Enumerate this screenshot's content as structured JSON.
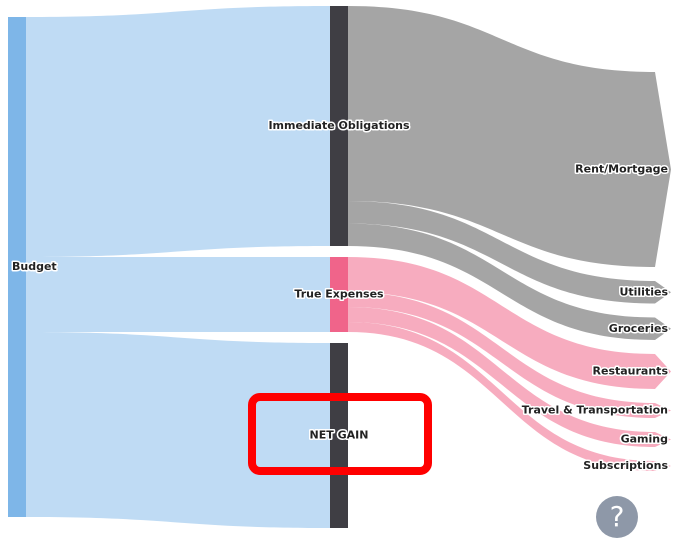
{
  "chart_data": {
    "type": "sankey",
    "nodes": [
      {
        "name": "Budget",
        "color": "#7eb6e8",
        "link_color": "#bcd9f3"
      },
      {
        "name": "Immediate Obligations",
        "color": "#3f3e44",
        "link_color": "#a0a0a0"
      },
      {
        "name": "True Expenses",
        "color": "#f0648a",
        "link_color": "#f7a8bc"
      },
      {
        "name": "NET GAIN",
        "color": "#3f3e44"
      },
      {
        "name": "Rent/Mortgage"
      },
      {
        "name": "Utilities"
      },
      {
        "name": "Groceries"
      },
      {
        "name": "Restaurants"
      },
      {
        "name": "Travel & Transportation"
      },
      {
        "name": "Gaming"
      },
      {
        "name": "Subscriptions"
      }
    ],
    "links": [
      {
        "source": 0,
        "target": 1,
        "value": 48
      },
      {
        "source": 0,
        "target": 2,
        "value": 15
      },
      {
        "source": 0,
        "target": 3,
        "value": 37
      },
      {
        "source": 1,
        "target": 4,
        "value": 39
      },
      {
        "source": 1,
        "target": 5,
        "value": 4.5
      },
      {
        "source": 1,
        "target": 6,
        "value": 4.5
      },
      {
        "source": 2,
        "target": 7,
        "value": 7
      },
      {
        "source": 2,
        "target": 8,
        "value": 3
      },
      {
        "source": 2,
        "target": 9,
        "value": 3
      },
      {
        "source": 2,
        "target": 10,
        "value": 2
      }
    ]
  },
  "help_button_label": "?"
}
